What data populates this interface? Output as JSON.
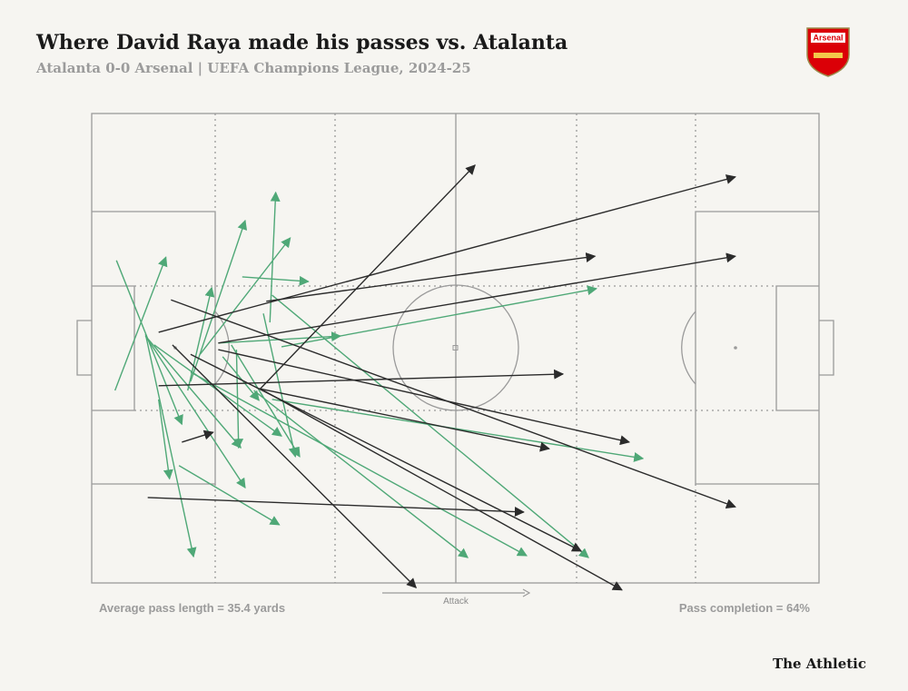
{
  "chart_data": {
    "type": "pass_map",
    "title": "Where David Raya made his passes vs. Atalanta",
    "subtitle": "Atalanta 0-0 Arsenal | UEFA Champions League, 2024-25",
    "badge_text": "Arsenal",
    "direction_label": "Attack",
    "left_note": "Average pass length = 35.4 yards",
    "right_note": "Pass completion = 64%",
    "brand": "The Athletic",
    "xlim": [
      0,
      100
    ],
    "ylim": [
      0,
      100
    ],
    "completed_passes": {
      "color": "#4fa877",
      "passes": [
        [
          3.2,
          59.0,
          10.2,
          30.6
        ],
        [
          3.4,
          31.3,
          12.4,
          66.2
        ],
        [
          7.4,
          47.0,
          14.0,
          94.4
        ],
        [
          9.2,
          60.9,
          10.7,
          77.8
        ],
        [
          12.0,
          75.0,
          25.8,
          87.6
        ],
        [
          13.6,
          57.1,
          21.1,
          22.8
        ],
        [
          24.5,
          44.5,
          25.3,
          16.8
        ],
        [
          14.9,
          51.3,
          27.3,
          26.5
        ],
        [
          13.2,
          59.0,
          16.5,
          37.1
        ],
        [
          20.7,
          34.8,
          29.8,
          35.8
        ],
        [
          17.4,
          48.9,
          34.2,
          47.4
        ],
        [
          26.1,
          49.7,
          69.4,
          37.3
        ],
        [
          7.4,
          47.4,
          20.5,
          71.2
        ],
        [
          7.4,
          47.4,
          21.1,
          79.7
        ],
        [
          18.0,
          51.8,
          23.0,
          61.1
        ],
        [
          19.9,
          50.3,
          20.2,
          71.2
        ],
        [
          23.6,
          42.6,
          28.0,
          73.1
        ],
        [
          24.8,
          38.7,
          68.3,
          94.6
        ],
        [
          22.3,
          59.0,
          51.7,
          94.6
        ],
        [
          13.6,
          55.1,
          59.8,
          94.2
        ],
        [
          24.8,
          60.9,
          75.8,
          73.5
        ],
        [
          19.2,
          49.3,
          28.6,
          73.1
        ],
        [
          8.6,
          49.3,
          26.1,
          68.7
        ]
      ]
    },
    "incomplete_passes": {
      "color": "#2b2b2b",
      "passes": [
        [
          23.2,
          58.6,
          52.7,
          11.0
        ],
        [
          9.2,
          46.6,
          88.5,
          13.5
        ],
        [
          24.0,
          40.0,
          69.2,
          30.4
        ],
        [
          17.4,
          48.9,
          88.5,
          30.4
        ],
        [
          9.2,
          58.0,
          64.8,
          55.5
        ],
        [
          10.9,
          39.7,
          88.5,
          83.8
        ],
        [
          23.0,
          58.6,
          62.9,
          71.4
        ],
        [
          17.4,
          50.3,
          73.9,
          70.0
        ],
        [
          7.7,
          81.8,
          59.4,
          84.9
        ],
        [
          12.4,
          70.0,
          16.7,
          67.9
        ],
        [
          11.1,
          49.3,
          44.6,
          101.0
        ],
        [
          13.6,
          51.3,
          67.3,
          93.2
        ],
        [
          23.6,
          59.0,
          72.9,
          101.5
        ]
      ]
    }
  }
}
